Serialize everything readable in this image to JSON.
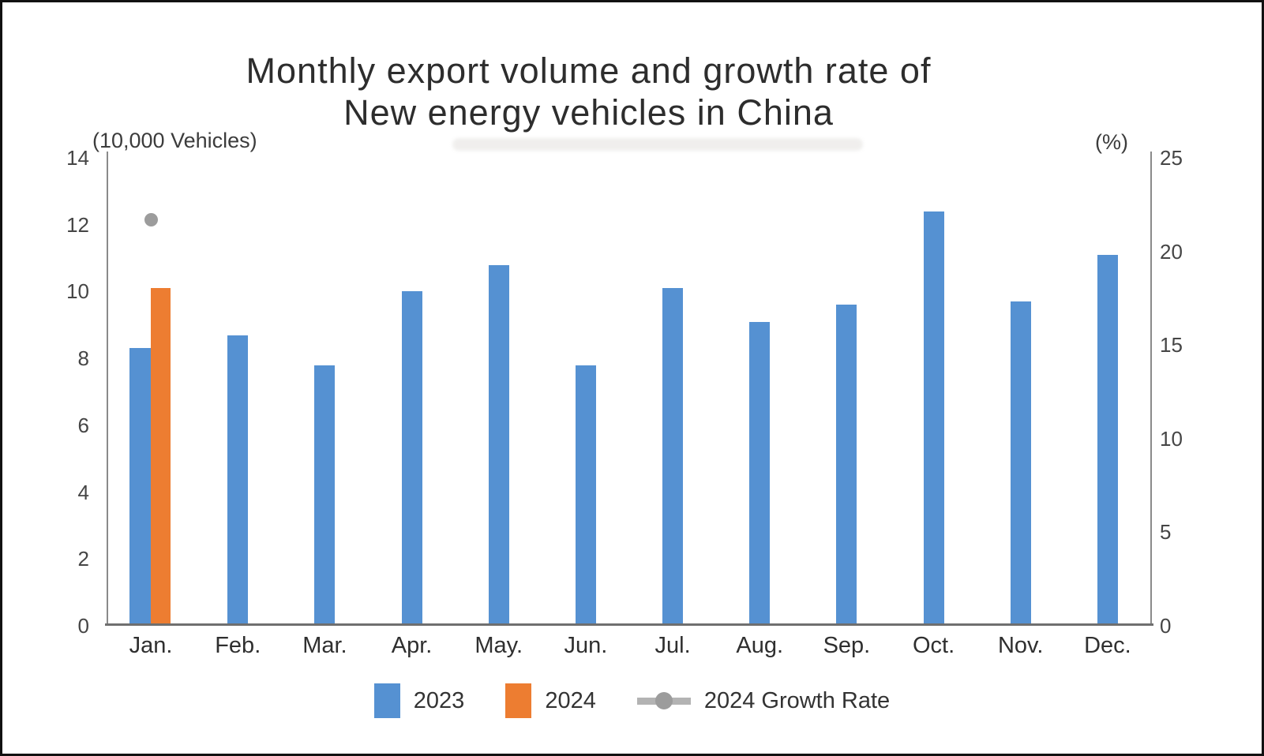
{
  "title": {
    "line1": "Monthly export volume and growth rate of",
    "line2": "New energy vehicles in China"
  },
  "axes": {
    "left_unit": "(10,000 Vehicles)",
    "right_unit": "(%)",
    "left_ticks": [
      14,
      12,
      10,
      8,
      6,
      4,
      2,
      0
    ],
    "right_ticks": [
      25,
      20,
      15,
      10,
      5,
      0
    ]
  },
  "legend": [
    {
      "label": "2023",
      "marker": "square",
      "color": "#5591d2"
    },
    {
      "label": "2024",
      "marker": "square",
      "color": "#ed7d31"
    },
    {
      "label": "2024 Growth Rate",
      "marker": "line-dot",
      "color": "#9c9c9c"
    }
  ],
  "colors": {
    "bar_2023": "#5591d2",
    "bar_2024": "#ed7d31",
    "growth_dot": "#9c9c9c",
    "axis_line": "#8a8a8a",
    "baseline": "#6f6f6f"
  },
  "chart_data": {
    "type": "bar",
    "title": "Monthly export volume and growth rate of New energy vehicles in China",
    "categories": [
      "Jan.",
      "Feb.",
      "Mar.",
      "Apr.",
      "May.",
      "Jun.",
      "Jul.",
      "Aug.",
      "Sep.",
      "Oct.",
      "Nov.",
      "Dec."
    ],
    "series": [
      {
        "name": "2023",
        "type": "bar",
        "axis": "left",
        "color": "#5591d2",
        "values": [
          8.3,
          8.7,
          7.8,
          10.0,
          10.8,
          7.8,
          10.1,
          9.1,
          9.6,
          12.4,
          9.7,
          11.1
        ]
      },
      {
        "name": "2024",
        "type": "bar",
        "axis": "left",
        "color": "#ed7d31",
        "values": [
          10.1,
          null,
          null,
          null,
          null,
          null,
          null,
          null,
          null,
          null,
          null,
          null
        ]
      },
      {
        "name": "2024 Growth Rate",
        "type": "point",
        "axis": "right",
        "color": "#9c9c9c",
        "values": [
          21.7,
          null,
          null,
          null,
          null,
          null,
          null,
          null,
          null,
          null,
          null,
          null
        ]
      }
    ],
    "left_axis": {
      "label": "(10,000 Vehicles)",
      "min": 0,
      "max": 14,
      "step": 2
    },
    "right_axis": {
      "label": "(%)",
      "min": 0,
      "max": 25,
      "step": 5
    },
    "grid": false,
    "legend_position": "bottom"
  }
}
